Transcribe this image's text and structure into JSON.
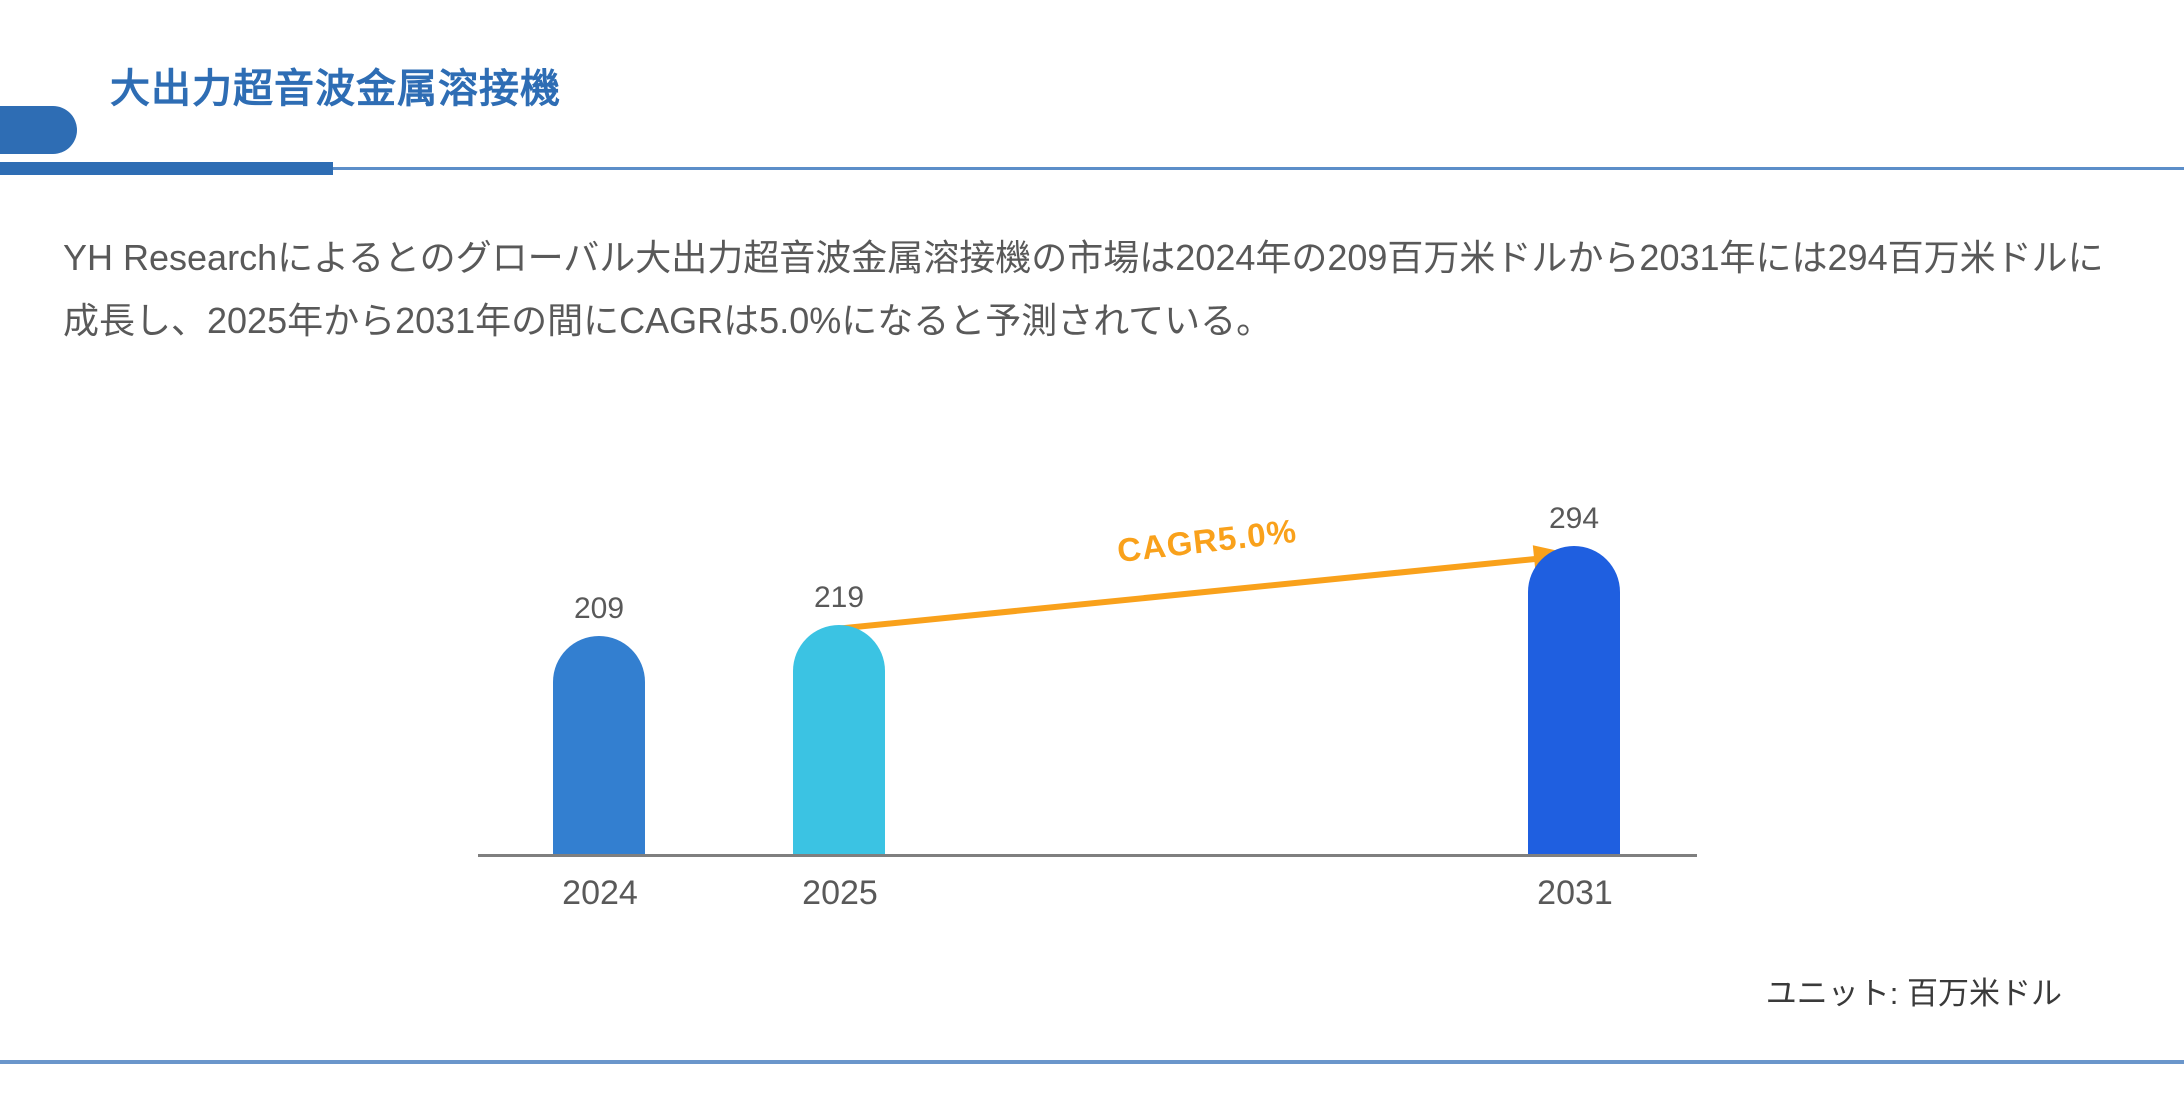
{
  "header": {
    "title": "大出力超音波金属溶接機"
  },
  "body": {
    "description": "YH Researchによるとのグローバル大出力超音波金属溶接機の市場は2024年の209百万米ドルから2031年には294百万米ドルに成長し、2025年から2031年の間にCAGRは5.0%になると予測されている。",
    "unit_label": "ユニット: 百万米ドル"
  },
  "chart_data": {
    "type": "bar",
    "title": "",
    "categories": [
      "2024",
      "2025",
      "2031"
    ],
    "values": [
      209,
      219,
      294
    ],
    "bar_colors": [
      "#337FD0",
      "#3BC3E3",
      "#1F5FE0"
    ],
    "annotation": {
      "label": "CAGR5.0%",
      "from_category": "2025",
      "to_category": "2031",
      "color": "#F9A11B"
    },
    "unit": "百万米ドル",
    "xlabel": "",
    "ylabel": "",
    "ylim": [
      0,
      320
    ],
    "grid": false,
    "legend": false
  },
  "colors": {
    "brand_blue": "#2E6DB4",
    "thin_rule_blue": "#5C8EC9",
    "bottom_rule_blue": "#6B96CB",
    "axis_gray": "#7F7F7F",
    "text_gray": "#595959",
    "unit_text": "#3A3A3A",
    "arrow_orange": "#F9A11B"
  }
}
